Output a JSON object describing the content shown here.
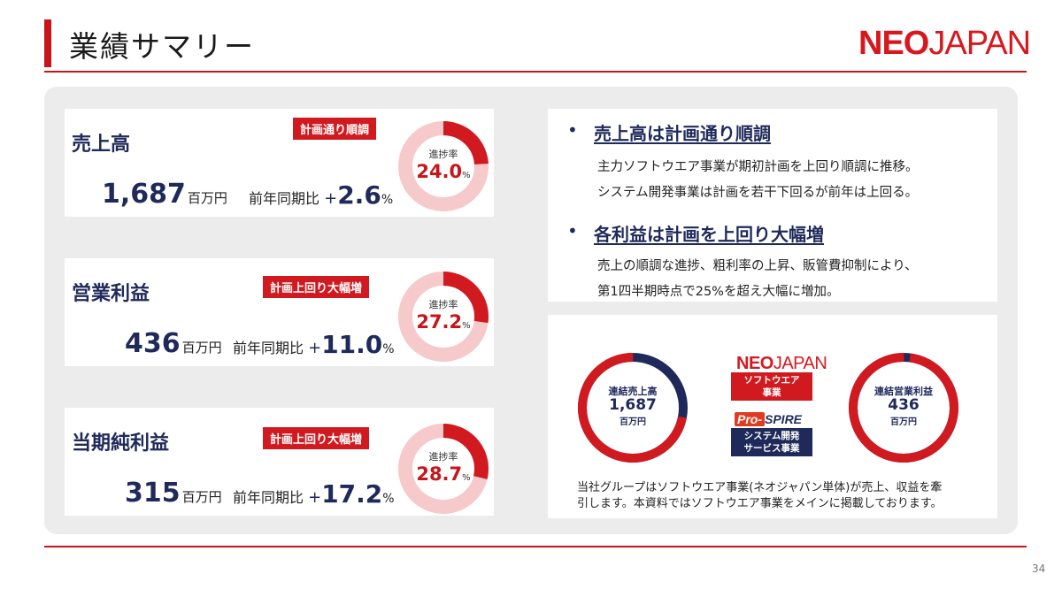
{
  "header": {
    "title": "業績サマリー",
    "logo_neo": "NEO",
    "logo_japan": "JAPAN"
  },
  "cards": [
    {
      "label": "売上高",
      "badge": "計画通り順調",
      "amount": "1,687",
      "unit": "百万円",
      "yoy_label": "前年同期比",
      "yoy_sign": "+",
      "yoy_value": "2.6",
      "yoy_unit": "%",
      "progress_label": "進捗率",
      "progress_value": "24.0",
      "progress_unit": "%",
      "progress": 24.0
    },
    {
      "label": "営業利益",
      "badge": "計画上回り大幅増",
      "amount": "436",
      "unit": "百万円",
      "yoy_label": "前年同期比",
      "yoy_sign": "+",
      "yoy_value": "11.0",
      "yoy_unit": "%",
      "progress_label": "進捗率",
      "progress_value": "27.2",
      "progress_unit": "%",
      "progress": 27.2
    },
    {
      "label": "当期純利益",
      "badge": "計画上回り大幅増",
      "amount": "315",
      "unit": "百万円",
      "yoy_label": "前年同期比",
      "yoy_sign": "+",
      "yoy_value": "17.2",
      "yoy_unit": "%",
      "progress_label": "進捗率",
      "progress_value": "28.7",
      "progress_unit": "%",
      "progress": 28.7
    }
  ],
  "messages": [
    {
      "bullet": "•",
      "heading": "売上高は計画通り順調",
      "lines": [
        "主力ソフトウエア事業が期初計画を上回り順調に推移。",
        "システム開発事業は計画を若干下回るが前年は上回る。"
      ]
    },
    {
      "bullet": "•",
      "heading": "各利益は計画を上回り大幅増",
      "lines": [
        "売上の順調な進捗、粗利率の上昇、販管費抑制により、",
        "第1四半期時点で25%を超え大幅に増加。"
      ]
    }
  ],
  "segments": {
    "sales_ring": {
      "l1": "連結売上高",
      "l2": "1,687",
      "l3": "百万円",
      "software_share": 0.72
    },
    "op_ring": {
      "l1": "連結営業利益",
      "l2": "436",
      "l3": "百万円",
      "software_share": 0.98
    },
    "neo_logo_neo": "NEO",
    "neo_logo_japan": "JAPAN",
    "software_label_1": "ソフトウエア",
    "software_label_2": "事業",
    "prospire_pro": "Pro-",
    "prospire_rest": "SPIRE",
    "system_label_1": "システム開発",
    "system_label_2": "サービス事業",
    "note_1": "当社グループはソフトウエア事業(ネオジャパン単体)が売上、収益を牽",
    "note_2": "引します。本資料ではソフトウエア事業をメインに掲載しております。"
  },
  "colors": {
    "red": "#c8151b",
    "navy": "#1f2a5a",
    "pink": "#f6c9cb"
  },
  "page_number": "34"
}
